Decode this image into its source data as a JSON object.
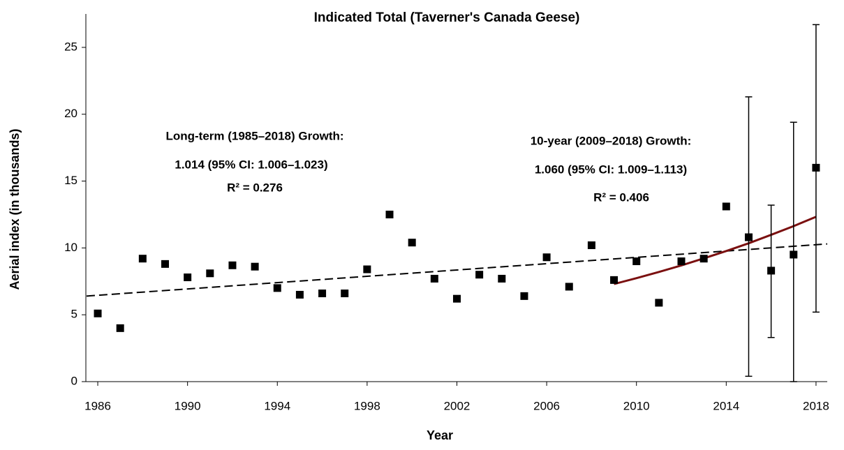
{
  "chart_data": {
    "type": "scatter",
    "title": "Indicated Total  (Taverner's Canada Geese)",
    "x_label": "Year",
    "y_label": "Aerial index (in thousands)",
    "x": [
      1986,
      1987,
      1988,
      1989,
      1990,
      1991,
      1992,
      1993,
      1994,
      1995,
      1996,
      1997,
      1998,
      1999,
      2000,
      2001,
      2002,
      2003,
      2004,
      2005,
      2006,
      2007,
      2008,
      2009,
      2010,
      2011,
      2012,
      2013,
      2014,
      2015,
      2016,
      2017,
      2018
    ],
    "values": [
      5.1,
      4.0,
      9.2,
      8.8,
      7.8,
      8.1,
      8.7,
      8.6,
      7.0,
      6.5,
      6.6,
      6.6,
      8.4,
      12.5,
      10.4,
      7.7,
      6.2,
      8.0,
      7.7,
      6.4,
      9.3,
      7.1,
      10.2,
      7.6,
      9.0,
      5.9,
      9.0,
      9.2,
      13.1,
      10.8,
      8.3,
      9.5,
      16.0
    ],
    "ci_low": [
      null,
      null,
      null,
      null,
      null,
      null,
      null,
      null,
      null,
      null,
      null,
      null,
      null,
      null,
      null,
      null,
      null,
      null,
      null,
      null,
      null,
      null,
      null,
      null,
      null,
      null,
      null,
      null,
      null,
      0.4,
      3.3,
      0,
      5.2
    ],
    "ci_high": [
      null,
      null,
      null,
      null,
      null,
      null,
      null,
      null,
      null,
      null,
      null,
      null,
      null,
      null,
      null,
      null,
      null,
      null,
      null,
      null,
      null,
      null,
      null,
      null,
      null,
      null,
      null,
      null,
      null,
      21.3,
      13.2,
      19.4,
      26.7
    ],
    "color": "#000000",
    "trend_lines": [
      {
        "color": "#000000",
        "dashed": true,
        "x": [
          1985.5,
          2018.5
        ],
        "values": [
          6.4,
          10.3
        ]
      },
      {
        "color": "#7b1010",
        "dashed": false,
        "x": [
          2009,
          2010,
          2011,
          2012,
          2013,
          2014,
          2015,
          2016,
          2017,
          2018
        ],
        "values": [
          7.3,
          7.74,
          8.2,
          8.69,
          9.22,
          9.77,
          10.35,
          10.98,
          11.63,
          12.33
        ]
      }
    ],
    "annotations": [
      "Long-term (1985–2018) Growth:",
      "1.014  (95% CI: 1.006–1.023)",
      "R² = 0.276",
      "10-year (2009–2018) Growth:",
      "1.060  (95% CI: 1.009–1.113)",
      "R² = 0.406"
    ],
    "xlim": [
      1985.47,
      2018.5
    ],
    "xticks": [
      1986,
      1990,
      1994,
      1998,
      2002,
      2006,
      2010,
      2014,
      2018
    ],
    "ylim": [
      0,
      27.5
    ],
    "yticks": [
      0,
      5,
      10,
      15,
      20,
      25
    ],
    "grid": false
  }
}
